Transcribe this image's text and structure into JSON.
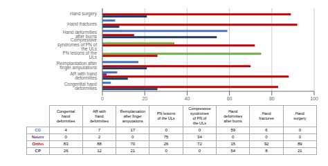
{
  "chart_data": [
    {
      "type": "bar",
      "orientation": "horizontal",
      "grid": true,
      "categories": [
        "Hand surgery",
        "Hand fractures",
        "Hand deformities after burns",
        "Compressive syndromes of PN of the ULs",
        "PN lesions of the ULs",
        "Reimplantation after finger amputations",
        "AR with hand deformities",
        "Congenital hand deformities"
      ],
      "series": [
        {
          "name": "CG",
          "color": "#4472c4",
          "values": [
            0,
            6,
            59,
            0,
            0,
            17,
            7,
            4
          ]
        },
        {
          "name": "Neuro",
          "colors": [
            "#7030a0",
            "#7030a0",
            "#7030a0",
            "#70ad47",
            "#70ad47",
            "#7030a0",
            "#7030a0",
            "#7030a0"
          ],
          "values": [
            0,
            0,
            0,
            34,
            75,
            0,
            2,
            0
          ]
        },
        {
          "name": "Ortho",
          "color": "#c00000",
          "values": [
            89,
            92,
            15,
            72,
            26,
            70,
            88,
            83
          ]
        },
        {
          "name": "CP",
          "color": "#1f3864",
          "values": [
            21,
            8,
            54,
            0,
            0,
            21,
            12,
            26
          ]
        }
      ],
      "xlim": [
        0,
        100
      ],
      "xticks": [
        0,
        20,
        40,
        60,
        80,
        100
      ]
    },
    {
      "type": "table",
      "columns": [
        "Congenital\nhand\ndeformities",
        "AR with\nhand\ndeformities",
        "Reimplantation\nafter finger\namputations",
        "PN lesions\nof the ULs",
        "Compressive\nsyndromes\nof PN of\nthe ULs",
        "Hand\ndeformities\nafter burns",
        "Hand\nfractures",
        "Hand\nsurgery"
      ],
      "series": [
        {
          "name": "CG",
          "color": "#4472c4",
          "values": [
            4,
            7,
            17,
            0,
            0,
            59,
            6,
            0
          ]
        },
        {
          "name": "Neuro",
          "color": "#7030a0",
          "values": [
            0,
            2,
            0,
            75,
            34,
            0,
            0,
            0
          ]
        },
        {
          "name": "Ortho",
          "color": "#c00000",
          "values": [
            83,
            88,
            70,
            26,
            72,
            15,
            92,
            89
          ]
        },
        {
          "name": "CP",
          "color": "#1f3864",
          "values": [
            26,
            12,
            21,
            0,
            0,
            54,
            8,
            21
          ]
        }
      ]
    }
  ]
}
